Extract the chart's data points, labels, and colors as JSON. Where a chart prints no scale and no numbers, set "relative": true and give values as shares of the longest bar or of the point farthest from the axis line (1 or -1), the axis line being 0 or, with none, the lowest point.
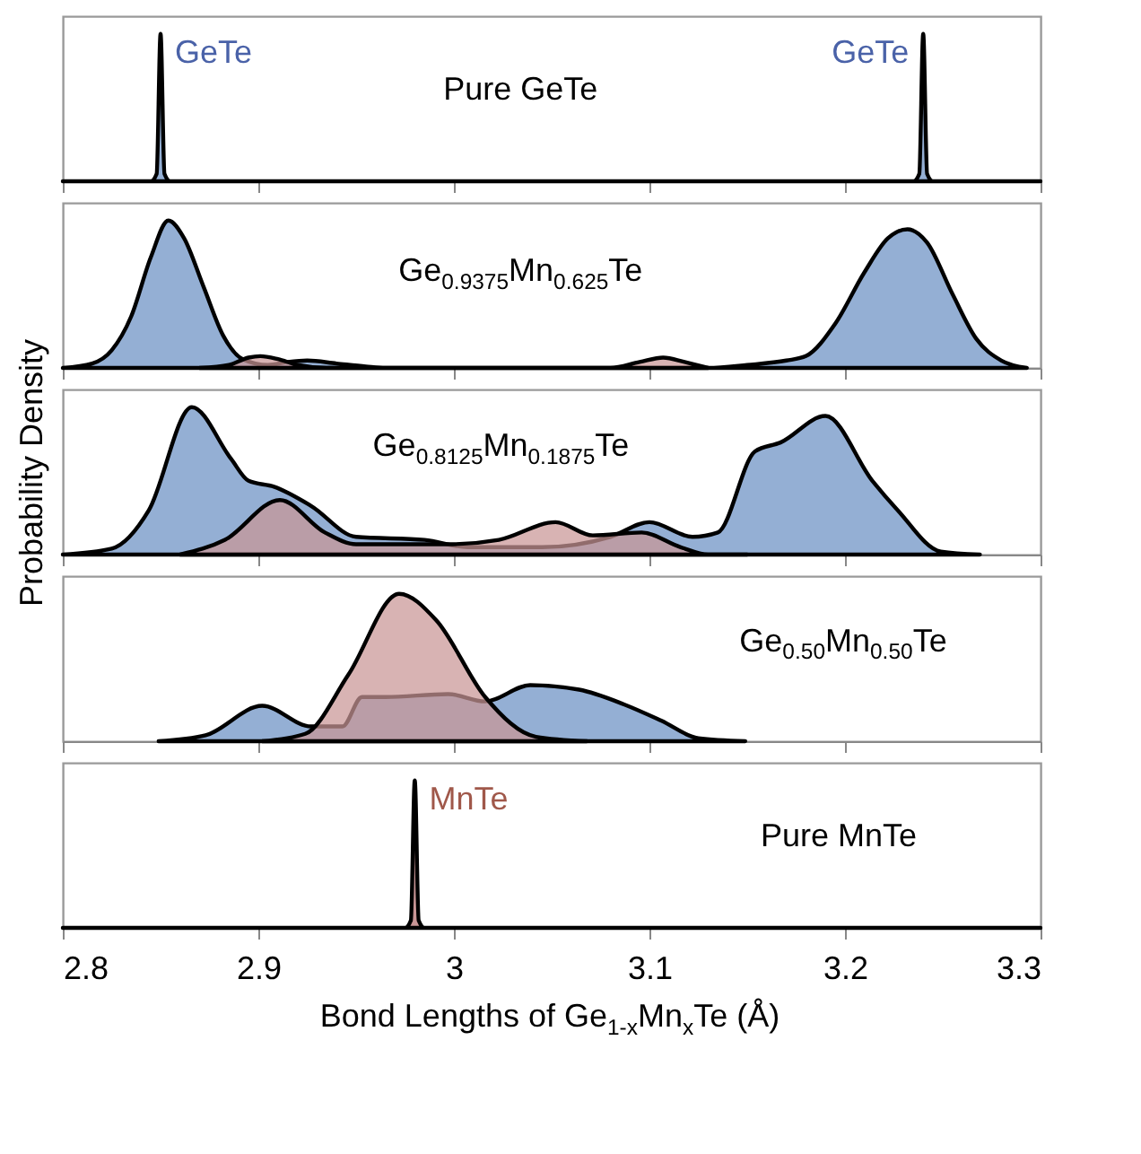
{
  "chart_data": [
    {
      "type": "area",
      "relative": true,
      "xlim": [
        2.8,
        3.3
      ],
      "xticks": [
        2.8,
        2.9,
        3,
        3.1,
        3.2,
        3.3
      ],
      "tick_labels": false,
      "annotations": [
        "Pure GeTe"
      ],
      "series": [
        {
          "name": "GeTe",
          "color": "#94afd4",
          "x": [
            2.8,
            2.845,
            2.848,
            2.85,
            2.852,
            2.855,
            2.9,
            3.2,
            3.235,
            3.238,
            3.24,
            3.242,
            3.245,
            3.3
          ],
          "values": [
            0,
            0,
            0.05,
            1,
            0.05,
            0,
            0,
            0,
            0,
            0.05,
            1,
            0.05,
            0,
            0
          ]
        }
      ]
    },
    {
      "type": "area",
      "relative": true,
      "xlim": [
        2.8,
        3.3
      ],
      "xticks": [
        2.8,
        2.9,
        3,
        3.1,
        3.2,
        3.3
      ],
      "tick_labels": false,
      "annotations": [
        "Ge$_{0.9375}$Mn$_{0.625}$Te"
      ],
      "series": [
        {
          "color": "#94afd4",
          "x": [
            2.8,
            2.815,
            2.825,
            2.835,
            2.845,
            2.854,
            2.862,
            2.872,
            2.882,
            2.892,
            2.905,
            2.915,
            2.925,
            2.94,
            2.955,
            2.965,
            3.13,
            3.15,
            3.17,
            3.18,
            3.195,
            3.21,
            3.222,
            3.232,
            3.242,
            3.255,
            3.267,
            3.28,
            3.293
          ],
          "values": [
            0,
            0.03,
            0.12,
            0.35,
            0.75,
            1,
            0.88,
            0.55,
            0.22,
            0.06,
            0.02,
            0.04,
            0.05,
            0.03,
            0.01,
            0,
            0,
            0.02,
            0.05,
            0.08,
            0.3,
            0.65,
            0.88,
            0.94,
            0.85,
            0.5,
            0.2,
            0.05,
            0
          ]
        },
        {
          "color": "#c99696",
          "x": [
            2.87,
            2.885,
            2.895,
            2.901,
            2.91,
            2.92,
            2.935,
            3.08,
            3.095,
            3.107,
            3.118,
            3.13
          ],
          "values": [
            0,
            0.02,
            0.07,
            0.08,
            0.06,
            0.02,
            0,
            0,
            0.04,
            0.07,
            0.04,
            0
          ]
        }
      ]
    },
    {
      "type": "area",
      "relative": true,
      "xlim": [
        2.8,
        3.3
      ],
      "xticks": [
        2.8,
        2.9,
        3,
        3.1,
        3.2,
        3.3
      ],
      "tick_labels": false,
      "ylabel": "Probability Density",
      "annotations": [
        "Ge$_{0.8125}$Mn$_{0.1875}$Te"
      ],
      "series": [
        {
          "color": "#94afd4",
          "x": [
            2.8,
            2.825,
            2.844,
            2.866,
            2.886,
            2.895,
            2.908,
            2.927,
            2.95,
            2.985,
            3.007,
            3.045,
            3.08,
            3.1,
            3.122,
            3.135,
            3.154,
            3.167,
            3.19,
            3.214,
            3.227,
            3.249,
            3.269
          ],
          "values": [
            0,
            0.04,
            0.3,
            1,
            0.65,
            0.5,
            0.46,
            0.33,
            0.12,
            0.1,
            0.05,
            0.05,
            0.12,
            0.22,
            0.12,
            0.15,
            0.7,
            0.76,
            0.94,
            0.5,
            0.3,
            0.02,
            0
          ]
        },
        {
          "color": "#c99696",
          "x": [
            2.86,
            2.883,
            2.911,
            2.934,
            2.95,
            2.972,
            2.997,
            3.023,
            3.052,
            3.071,
            3.096,
            3.116,
            3.13,
            3.15
          ],
          "values": [
            0,
            0.1,
            0.37,
            0.15,
            0.07,
            0.07,
            0.07,
            0.1,
            0.22,
            0.13,
            0.15,
            0.05,
            0,
            0
          ]
        }
      ]
    },
    {
      "type": "area",
      "relative": true,
      "xlim": [
        2.8,
        3.3
      ],
      "xticks": [
        2.8,
        2.9,
        3,
        3.1,
        3.2,
        3.3
      ],
      "tick_labels": false,
      "annotations": [
        "Ge$_{0.50}$Mn$_{0.50}$Te"
      ],
      "series": [
        {
          "color": "#94afd4",
          "x": [
            2.849,
            2.873,
            2.902,
            2.927,
            2.943,
            2.953,
            2.965,
            2.997,
            3.016,
            3.039,
            3.064,
            3.087,
            3.106,
            3.125,
            3.149
          ],
          "values": [
            0,
            0.04,
            0.24,
            0.1,
            0.1,
            0.3,
            0.3,
            0.32,
            0.27,
            0.38,
            0.35,
            0.25,
            0.14,
            0.02,
            0
          ]
        },
        {
          "color": "#c99696",
          "x": [
            2.902,
            2.924,
            2.946,
            2.972,
            2.991,
            3.016,
            3.042,
            3.068
          ],
          "values": [
            0,
            0.05,
            0.45,
            1,
            0.82,
            0.3,
            0.03,
            0
          ]
        }
      ]
    },
    {
      "type": "area",
      "relative": true,
      "xlim": [
        2.8,
        3.3
      ],
      "xticks": [
        2.8,
        2.9,
        3,
        3.1,
        3.2,
        3.3
      ],
      "tick_labels": "x",
      "xlabel": "Bond Lengths of Ge$_{1-x}$Mn$_{x}$Te (Å)",
      "annotations": [
        "Pure  MnTe"
      ],
      "series": [
        {
          "name": "MnTe",
          "color": "#c99696",
          "x": [
            2.8,
            2.975,
            2.978,
            2.98,
            2.982,
            2.985,
            3.3
          ],
          "values": [
            0,
            0,
            0.05,
            1,
            0.05,
            0,
            0
          ]
        }
      ]
    }
  ]
}
